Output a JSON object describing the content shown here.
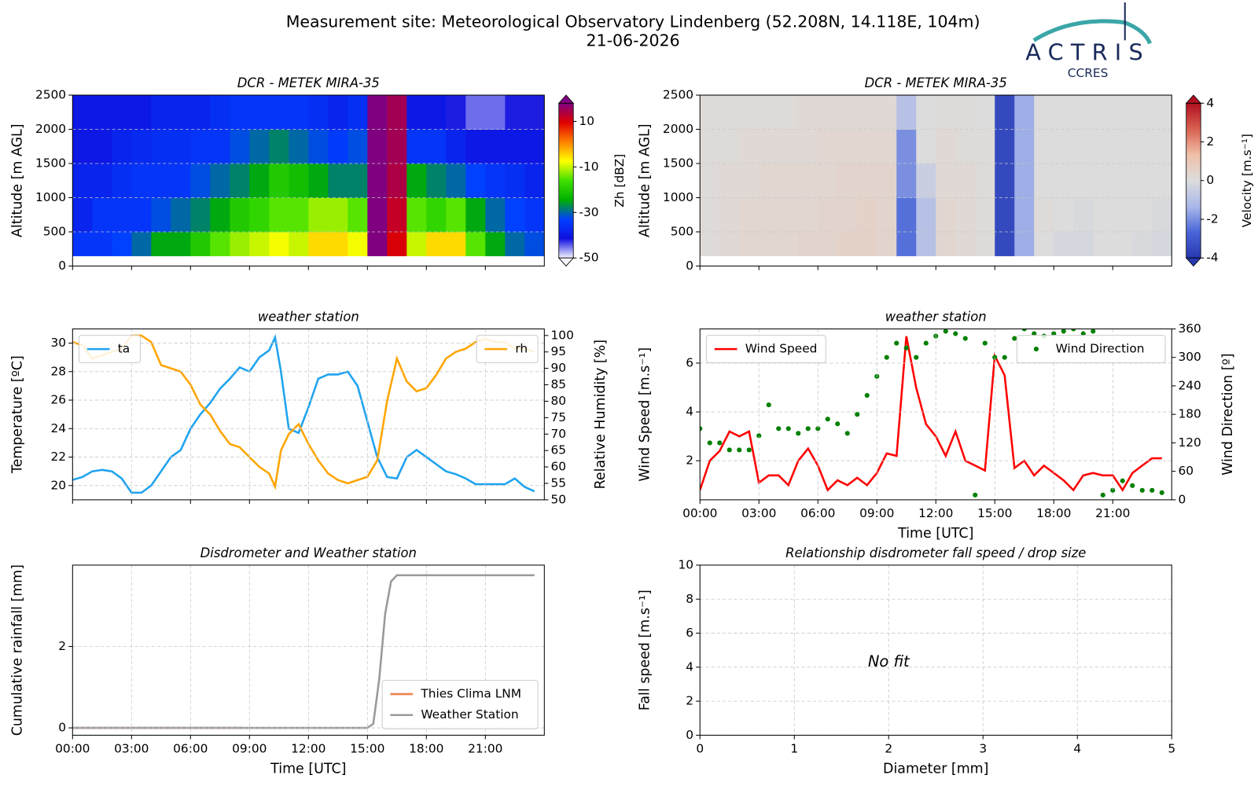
{
  "header": {
    "title": "Measurement site: Meteorological Observatory Lindenberg (52.208N, 14.118E, 104m)",
    "date": "21-06-2026",
    "logo": "ACTRIS",
    "logo_sub": "CCRES"
  },
  "chart_data": [
    {
      "type": "heatmap",
      "title": "DCR - METEK MIRA-35",
      "ylabel": "Altitude [m AGL]",
      "zlabel": "Zh [dBZ]",
      "xlim": [
        0,
        24
      ],
      "xticks": [
        0,
        3,
        6,
        9,
        12,
        15,
        18,
        21
      ],
      "xtick_labels": false,
      "ylim": [
        0,
        2500
      ],
      "yticks": [
        0,
        500,
        1000,
        1500,
        2000,
        2500
      ],
      "grid": true,
      "x_edges": [
        0,
        1,
        2,
        3,
        4,
        5,
        6,
        7,
        8,
        9,
        10,
        11,
        12,
        13,
        14,
        15,
        16,
        17,
        18,
        19,
        20,
        21,
        22,
        23,
        24
      ],
      "y_edges": [
        150,
        500,
        1000,
        1500,
        2000,
        2500
      ],
      "z": [
        [
          -35,
          -38,
          -38,
          -40,
          -40
        ],
        [
          -35,
          -35,
          -38,
          -40,
          -40
        ],
        [
          -33,
          -35,
          -36,
          -38,
          -40
        ],
        [
          -30,
          -35,
          -35,
          -37,
          -40
        ],
        [
          -25,
          -32,
          -35,
          -36,
          -38
        ],
        [
          -25,
          -30,
          -35,
          -36,
          -38
        ],
        [
          -20,
          -28,
          -32,
          -35,
          -38
        ],
        [
          -15,
          -25,
          -30,
          -35,
          -36
        ],
        [
          -12,
          -20,
          -28,
          -32,
          -35
        ],
        [
          -10,
          -18,
          -25,
          -30,
          -35
        ],
        [
          -8,
          -15,
          -20,
          -28,
          -35
        ],
        [
          -10,
          -15,
          -22,
          -30,
          -35
        ],
        [
          -5,
          -12,
          -25,
          -32,
          -36
        ],
        [
          -5,
          -12,
          -28,
          -34,
          -38
        ],
        [
          -8,
          -15,
          -28,
          -32,
          -36
        ],
        [
          18,
          18,
          18,
          18,
          18
        ],
        [
          10,
          12,
          14,
          15,
          15
        ],
        [
          -10,
          -15,
          -25,
          -35,
          -40
        ],
        [
          -5,
          -18,
          -28,
          -35,
          -40
        ],
        [
          -5,
          -15,
          -30,
          -38,
          -42
        ],
        [
          -15,
          -25,
          -33,
          -40,
          -45
        ],
        [
          -25,
          -30,
          -35,
          -40,
          -45
        ],
        [
          -30,
          -33,
          -36,
          -40,
          -42
        ],
        [
          -32,
          -35,
          -38,
          -40,
          -42
        ]
      ],
      "zlim": [
        -50,
        18
      ],
      "zticks": [
        -50,
        -30,
        -10,
        10
      ],
      "colors": [
        "#f4f4ff",
        "#1010e0",
        "#0040ff",
        "#00b000",
        "#40e000",
        "#ffff00",
        "#ff8000",
        "#e00000",
        "#800080"
      ]
    },
    {
      "type": "heatmap",
      "title": "DCR - METEK MIRA-35",
      "ylabel": "Altitude [m AGL]",
      "zlabel": "Velocity [m.s⁻¹]",
      "xlim": [
        0,
        24
      ],
      "xticks": [
        0,
        3,
        6,
        9,
        12,
        15,
        18,
        21
      ],
      "xtick_labels": false,
      "ylim": [
        0,
        2500
      ],
      "yticks": [
        0,
        500,
        1000,
        1500,
        2000,
        2500
      ],
      "grid": true,
      "x_edges": [
        0,
        1,
        2,
        3,
        4,
        5,
        6,
        7,
        8,
        9,
        10,
        11,
        12,
        13,
        14,
        15,
        16,
        17,
        18,
        19,
        20,
        21,
        22,
        23,
        24
      ],
      "y_edges": [
        150,
        500,
        1000,
        1500,
        2000,
        2500
      ],
      "z": [
        [
          0.1,
          0.1,
          0.1,
          0.1,
          0.1
        ],
        [
          0.2,
          0.2,
          0.2,
          0.1,
          0.1
        ],
        [
          0.3,
          0.3,
          0.2,
          0.2,
          0.1
        ],
        [
          0.3,
          0.3,
          0.3,
          0.2,
          0.1
        ],
        [
          0.3,
          0.3,
          0.3,
          0.2,
          0.1
        ],
        [
          0.4,
          0.3,
          0.3,
          0.2,
          0.2
        ],
        [
          0.4,
          0.4,
          0.3,
          0.3,
          0.2
        ],
        [
          0.5,
          0.4,
          0.4,
          0.3,
          0.2
        ],
        [
          0.5,
          0.5,
          0.4,
          0.3,
          0.2
        ],
        [
          0.4,
          0.4,
          0.4,
          0.3,
          0.2
        ],
        [
          -2.5,
          -2.5,
          -2,
          -2,
          -1
        ],
        [
          -1,
          -1,
          -0.5,
          0,
          0
        ],
        [
          0.3,
          0.3,
          0.2,
          0.2,
          0.1
        ],
        [
          0.2,
          0.2,
          0.2,
          0.1,
          0.1
        ],
        [
          0.1,
          0.1,
          0.1,
          0.1,
          0
        ],
        [
          -3.5,
          -3.5,
          -3.5,
          -3.5,
          -3.5
        ],
        [
          -1.5,
          -1.5,
          -1.5,
          -1.5,
          -1.5
        ],
        [
          0,
          0.1,
          0,
          0,
          0
        ],
        [
          -0.2,
          0,
          0,
          0,
          0
        ],
        [
          -0.2,
          -0.1,
          0,
          0,
          0
        ],
        [
          0,
          0,
          0,
          0,
          0
        ],
        [
          0,
          0,
          0,
          0,
          0
        ],
        [
          -0.1,
          0,
          0,
          0,
          0
        ],
        [
          -0.2,
          -0.1,
          0,
          0,
          0
        ]
      ],
      "zlim": [
        -4,
        4
      ],
      "zticks": [
        -4,
        -2,
        0,
        2,
        4
      ],
      "colors": [
        "#2838b0",
        "#4a66d8",
        "#aab8e8",
        "#dcdcdc",
        "#f0c0a8",
        "#d86050",
        "#b01020"
      ]
    },
    {
      "type": "line",
      "title": "weather station",
      "ylabel": "Temperature [ºC]",
      "y2label": "Relative Humidity [%]",
      "xlim": [
        0,
        24
      ],
      "xticks": [
        0,
        3,
        6,
        9,
        12,
        15,
        18,
        21
      ],
      "xtick_labels": false,
      "ylim": [
        19,
        31
      ],
      "yticks": [
        20,
        22,
        24,
        26,
        28,
        30
      ],
      "y2lim": [
        50,
        102
      ],
      "y2ticks": [
        50,
        55,
        60,
        65,
        70,
        75,
        80,
        85,
        90,
        95,
        100
      ],
      "grid": true,
      "legend_loc": "upper left",
      "legend2_loc": "upper right",
      "series": [
        {
          "name": "ta",
          "color": "#1fa3f0",
          "x": [
            0,
            0.5,
            1,
            1.5,
            2,
            2.5,
            3,
            3.5,
            4,
            4.5,
            5,
            5.5,
            6,
            6.5,
            7,
            7.5,
            8,
            8.5,
            9,
            9.5,
            10,
            10.3,
            10.6,
            11,
            11.5,
            12,
            12.5,
            13,
            13.5,
            14,
            14.5,
            15,
            15.5,
            16,
            16.5,
            17,
            17.5,
            18,
            18.5,
            19,
            19.5,
            20,
            20.5,
            21,
            21.5,
            22,
            22.5,
            23,
            23.5
          ],
          "values": [
            20.4,
            20.6,
            21.0,
            21.1,
            21.0,
            20.5,
            19.5,
            19.5,
            20.0,
            21.0,
            22.0,
            22.5,
            24.0,
            25.0,
            25.8,
            26.8,
            27.5,
            28.3,
            28.0,
            29.0,
            29.5,
            30.4,
            28.0,
            24.0,
            23.7,
            25.5,
            27.5,
            27.8,
            27.8,
            28.0,
            27.0,
            24.5,
            22.0,
            20.6,
            20.5,
            22.0,
            22.5,
            22.0,
            21.5,
            21.0,
            20.8,
            20.5,
            20.1,
            20.1,
            20.1,
            20.1,
            20.5,
            19.9,
            19.6
          ]
        },
        {
          "name": "rh",
          "color": "#ffa500",
          "axis": "y2",
          "x": [
            0,
            0.5,
            1,
            1.5,
            2,
            2.5,
            3,
            3.5,
            4,
            4.5,
            5,
            5.5,
            6,
            6.5,
            7,
            7.5,
            8,
            8.5,
            9,
            9.5,
            10,
            10.3,
            10.6,
            11,
            11.5,
            12,
            12.5,
            13,
            13.5,
            14,
            14.5,
            15,
            15.5,
            16,
            16.5,
            17,
            17.5,
            18,
            18.5,
            19,
            19.5,
            20,
            20.5,
            21,
            21.5,
            22,
            22.5,
            23,
            23.5
          ],
          "values": [
            98,
            97,
            93,
            94,
            95,
            96,
            100,
            100,
            98,
            91,
            90,
            89,
            85,
            79,
            76,
            71,
            67,
            66,
            63,
            60,
            58,
            54,
            65,
            70,
            73,
            67,
            62,
            58,
            56,
            55,
            56,
            57,
            62,
            80,
            93,
            86,
            83,
            84,
            88,
            93,
            95,
            96,
            98,
            99,
            98,
            98,
            96,
            96,
            95
          ]
        }
      ]
    },
    {
      "type": "line",
      "title": "weather station",
      "ylabel": "Wind Speed [m.s⁻¹]",
      "y2label": "Wind Direction [º]",
      "xlabel": "Time [UTC]",
      "xlim": [
        0,
        24
      ],
      "xticks": [
        {
          "value": 0,
          "label": "00:00"
        },
        {
          "value": 3,
          "label": "03:00"
        },
        {
          "value": 6,
          "label": "06:00"
        },
        {
          "value": 9,
          "label": "09:00"
        },
        {
          "value": 12,
          "label": "12:00"
        },
        {
          "value": 15,
          "label": "15:00"
        },
        {
          "value": 18,
          "label": "18:00"
        },
        {
          "value": 21,
          "label": "21:00"
        }
      ],
      "ylim": [
        0.4,
        7.4
      ],
      "yticks": [
        2,
        4,
        6
      ],
      "y2lim": [
        0,
        360
      ],
      "y2ticks": [
        0,
        60,
        120,
        180,
        240,
        300,
        360
      ],
      "grid": true,
      "legend_loc": "upper left",
      "legend2_loc": "upper right",
      "series": [
        {
          "name": "Wind Speed",
          "color": "#ff0000",
          "x": [
            0,
            0.5,
            1,
            1.5,
            2,
            2.5,
            3,
            3.5,
            4,
            4.5,
            5,
            5.5,
            6,
            6.5,
            7,
            7.5,
            8,
            8.5,
            9,
            9.5,
            10,
            10.5,
            11,
            11.5,
            12,
            12.5,
            13,
            13.5,
            14,
            14.5,
            15,
            15.5,
            16,
            16.5,
            17,
            17.5,
            18,
            18.5,
            19,
            19.5,
            20,
            20.5,
            21,
            21.5,
            22,
            22.5,
            23,
            23.5
          ],
          "values": [
            0.8,
            2.0,
            2.4,
            3.2,
            3.0,
            3.2,
            1.1,
            1.4,
            1.4,
            1.0,
            2.0,
            2.5,
            1.8,
            0.8,
            1.2,
            1.0,
            1.3,
            1.0,
            1.5,
            2.3,
            2.2,
            7.1,
            5.0,
            3.5,
            3.0,
            2.2,
            3.2,
            2.0,
            1.8,
            1.6,
            6.3,
            5.5,
            1.7,
            2.0,
            1.4,
            1.8,
            1.5,
            1.2,
            0.8,
            1.4,
            1.5,
            1.4,
            1.4,
            0.8,
            1.5,
            1.8,
            2.1,
            2.1
          ]
        },
        {
          "name": "Wind Direction",
          "color": "#008000",
          "axis": "y2",
          "marker": true,
          "x": [
            0,
            0.5,
            1,
            1.5,
            2,
            2.5,
            3,
            3.5,
            4,
            4.5,
            5,
            5.5,
            6,
            6.5,
            7,
            7.5,
            8,
            8.5,
            9,
            9.5,
            10,
            10.5,
            11,
            11.5,
            12,
            12.5,
            13,
            13.5,
            14,
            14.5,
            15,
            15.5,
            16,
            16.5,
            17,
            17.5,
            18,
            18.5,
            19,
            19.5,
            20,
            20.5,
            21,
            21.5,
            22,
            22.5,
            23,
            23.5
          ],
          "values": [
            150,
            120,
            120,
            105,
            105,
            105,
            135,
            200,
            150,
            150,
            140,
            150,
            150,
            170,
            160,
            140,
            180,
            220,
            260,
            300,
            330,
            320,
            300,
            330,
            345,
            355,
            350,
            340,
            10,
            330,
            300,
            300,
            340,
            360,
            350,
            345,
            350,
            355,
            360,
            350,
            355,
            10,
            20,
            40,
            30,
            20,
            20,
            15
          ]
        }
      ]
    },
    {
      "type": "line",
      "title": "Disdrometer and Weather station",
      "ylabel": "Cumulative rainfall [mm]",
      "xlabel": "Time [UTC]",
      "xlim": [
        0,
        24
      ],
      "xticks": [
        {
          "value": 0,
          "label": "00:00"
        },
        {
          "value": 3,
          "label": "03:00"
        },
        {
          "value": 6,
          "label": "06:00"
        },
        {
          "value": 9,
          "label": "09:00"
        },
        {
          "value": 12,
          "label": "12:00"
        },
        {
          "value": 15,
          "label": "15:00"
        },
        {
          "value": 18,
          "label": "18:00"
        },
        {
          "value": 21,
          "label": "21:00"
        }
      ],
      "ylim": [
        -0.18,
        4.0
      ],
      "yticks": [
        0,
        2
      ],
      "grid": true,
      "legend_loc": "lower right",
      "series": [
        {
          "name": "Thies Clima LNM",
          "color": "#f08050",
          "x": [
            0,
            8.7
          ],
          "values": [
            0,
            0
          ]
        },
        {
          "name": "Weather Station",
          "color": "#999999",
          "x": [
            0,
            15,
            15.3,
            15.6,
            15.9,
            16.2,
            16.5,
            17,
            23.5
          ],
          "values": [
            0,
            0,
            0.1,
            1.2,
            2.8,
            3.6,
            3.75,
            3.75,
            3.75
          ]
        }
      ]
    },
    {
      "type": "scatter",
      "title": "Relationship disdrometer fall speed / drop size",
      "ylabel": "Fall speed [m.s⁻¹]",
      "xlabel": "Diameter [mm]",
      "annotation": "No fit",
      "xlim": [
        0,
        5
      ],
      "xticks": [
        0,
        1,
        2,
        3,
        4,
        5
      ],
      "ylim": [
        0,
        10
      ],
      "yticks": [
        0,
        2,
        4,
        6,
        8,
        10
      ],
      "grid": true,
      "series": []
    }
  ]
}
